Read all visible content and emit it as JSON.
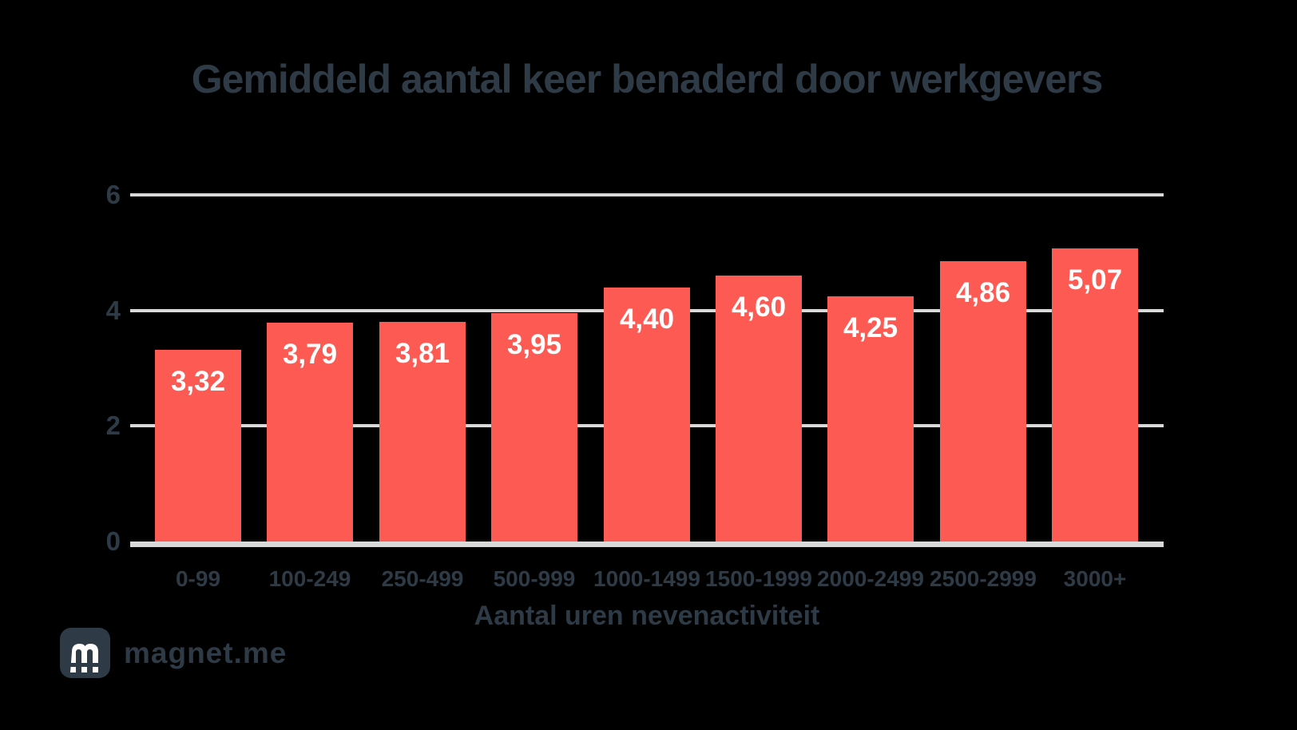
{
  "page": {
    "background": "#000000"
  },
  "header": {
    "title": "Gemiddeld aantal keer benaderd door werkgevers"
  },
  "footer": {
    "brand_name": "magnet.me",
    "logo_icon": "magnet-m-icon"
  },
  "colors": {
    "background": "#000000",
    "bar": "#fc5a52",
    "text_dark": "#2e3a46",
    "grid": "#d9d9d9",
    "bar_label": "#ffffff"
  },
  "chart_data": {
    "type": "bar",
    "title": "Gemiddeld aantal keer benaderd door werkgevers",
    "xlabel": "Aantal uren nevenactiviteit",
    "ylabel": "",
    "categories": [
      "0-99",
      "100-249",
      "250-499",
      "500-999",
      "1000-1499",
      "1500-1999",
      "2000-2499",
      "2500-2999",
      "3000+"
    ],
    "values": [
      3.32,
      3.79,
      3.81,
      3.95,
      4.4,
      4.6,
      4.25,
      4.86,
      5.07
    ],
    "value_labels": [
      "3,32",
      "3,79",
      "3,81",
      "3,95",
      "4,40",
      "4,60",
      "4,25",
      "4,86",
      "5,07"
    ],
    "ylim": [
      0,
      6
    ],
    "yticks": [
      6,
      4,
      2,
      0
    ],
    "grid": true,
    "legend": false,
    "bar_color": "#fc5a52"
  }
}
